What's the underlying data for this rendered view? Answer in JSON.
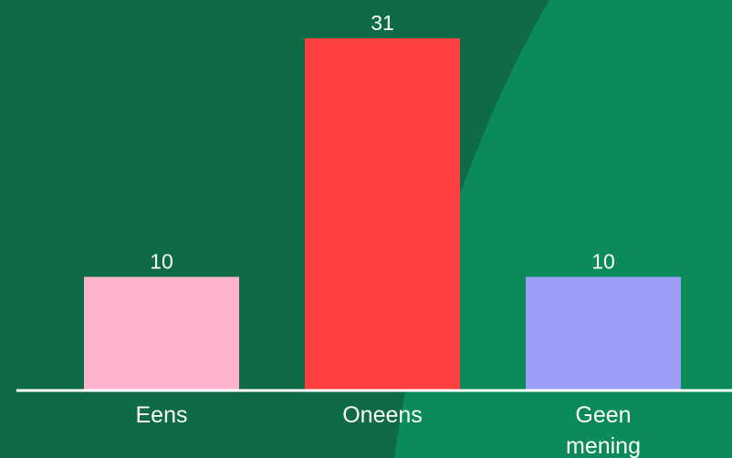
{
  "colors": {
    "background": "#0f6b45",
    "background_accent": "#0b8a5a",
    "axis": "#ffffff",
    "text": "#ffffff"
  },
  "chart_data": {
    "type": "bar",
    "categories": [
      "Eens",
      "Oneens",
      "Geen mening"
    ],
    "category_lines": [
      [
        "Eens"
      ],
      [
        "Oneens"
      ],
      [
        "Geen",
        "mening"
      ]
    ],
    "values": [
      10,
      31,
      10
    ],
    "bar_colors": [
      "#ffb3cc",
      "#ff4040",
      "#9b9ff5"
    ],
    "data_labels": [
      "10",
      "31",
      "10"
    ],
    "ylim": [
      0,
      31
    ],
    "grid": false,
    "legend": "none"
  }
}
